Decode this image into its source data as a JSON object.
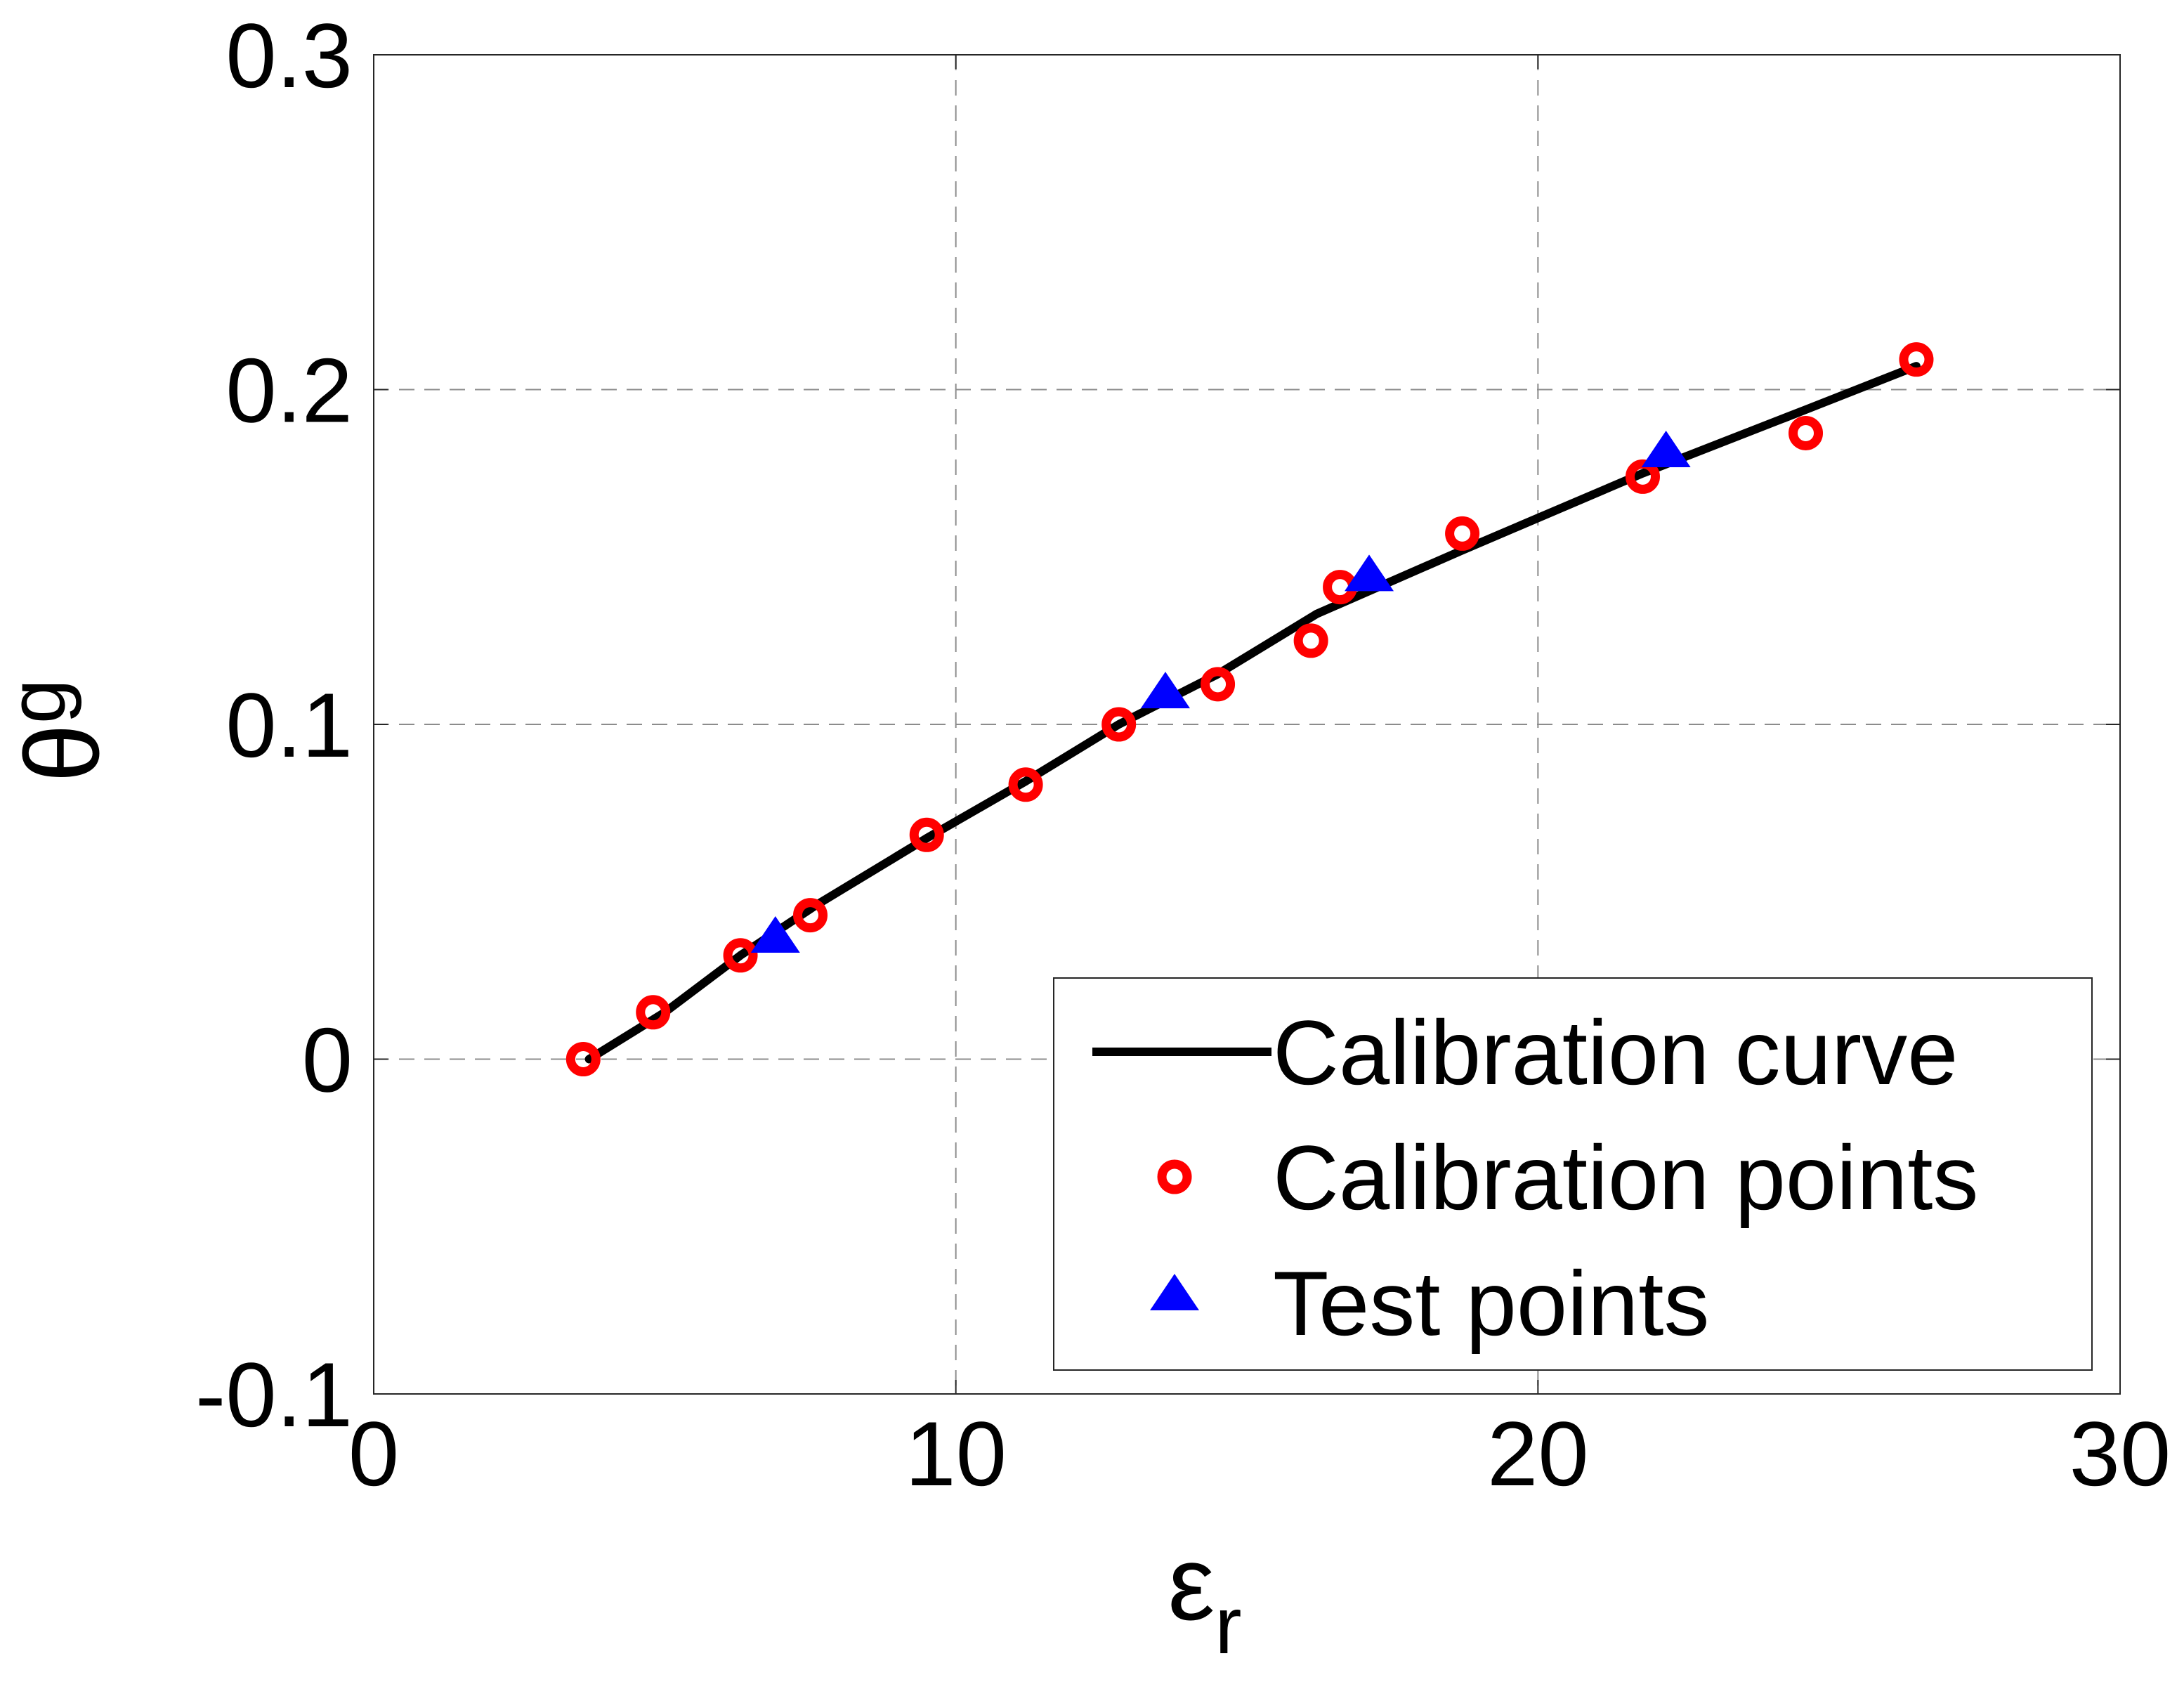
{
  "chart_data": {
    "type": "scatter",
    "title": "",
    "xlabel": {
      "symbol": "ε",
      "subscript": "r"
    },
    "ylabel": {
      "symbol": "θ",
      "subscript": "g"
    },
    "xlim": [
      0,
      30
    ],
    "ylim": [
      -0.1,
      0.3
    ],
    "xticks": [
      0,
      10,
      20,
      30
    ],
    "xtick_labels": [
      "0",
      "10",
      "20",
      "30"
    ],
    "yticks": [
      -0.1,
      0,
      0.1,
      0.2,
      0.3
    ],
    "ytick_labels": [
      "-0.1",
      "0",
      "0.1",
      "0.2",
      "0.3"
    ],
    "grid": true,
    "legend_position": "bottom-right",
    "series": [
      {
        "name": "Calibration curve",
        "style": "line",
        "color": "#000000",
        "x": [
          3.7,
          5.0,
          6.3,
          7.6,
          9.5,
          11.2,
          12.8,
          14.5,
          16.2,
          18.7,
          21.8,
          24.6,
          26.5
        ],
        "y": [
          0.0,
          0.014,
          0.031,
          0.046,
          0.066,
          0.083,
          0.1,
          0.115,
          0.133,
          0.152,
          0.175,
          0.194,
          0.207
        ]
      },
      {
        "name": "Calibration points",
        "style": "circle",
        "color": "#ff0000",
        "x": [
          3.6,
          4.8,
          6.3,
          7.5,
          9.5,
          11.2,
          12.8,
          14.5,
          16.1,
          16.6,
          18.7,
          21.8,
          24.6,
          26.5
        ],
        "y": [
          0.0,
          0.014,
          0.031,
          0.043,
          0.067,
          0.082,
          0.1,
          0.112,
          0.125,
          0.141,
          0.157,
          0.174,
          0.187,
          0.209
        ]
      },
      {
        "name": "Test points",
        "style": "triangle",
        "color": "#0000ff",
        "x": [
          6.9,
          13.6,
          17.1,
          22.2
        ],
        "y": [
          0.036,
          0.109,
          0.144,
          0.181
        ]
      }
    ]
  }
}
